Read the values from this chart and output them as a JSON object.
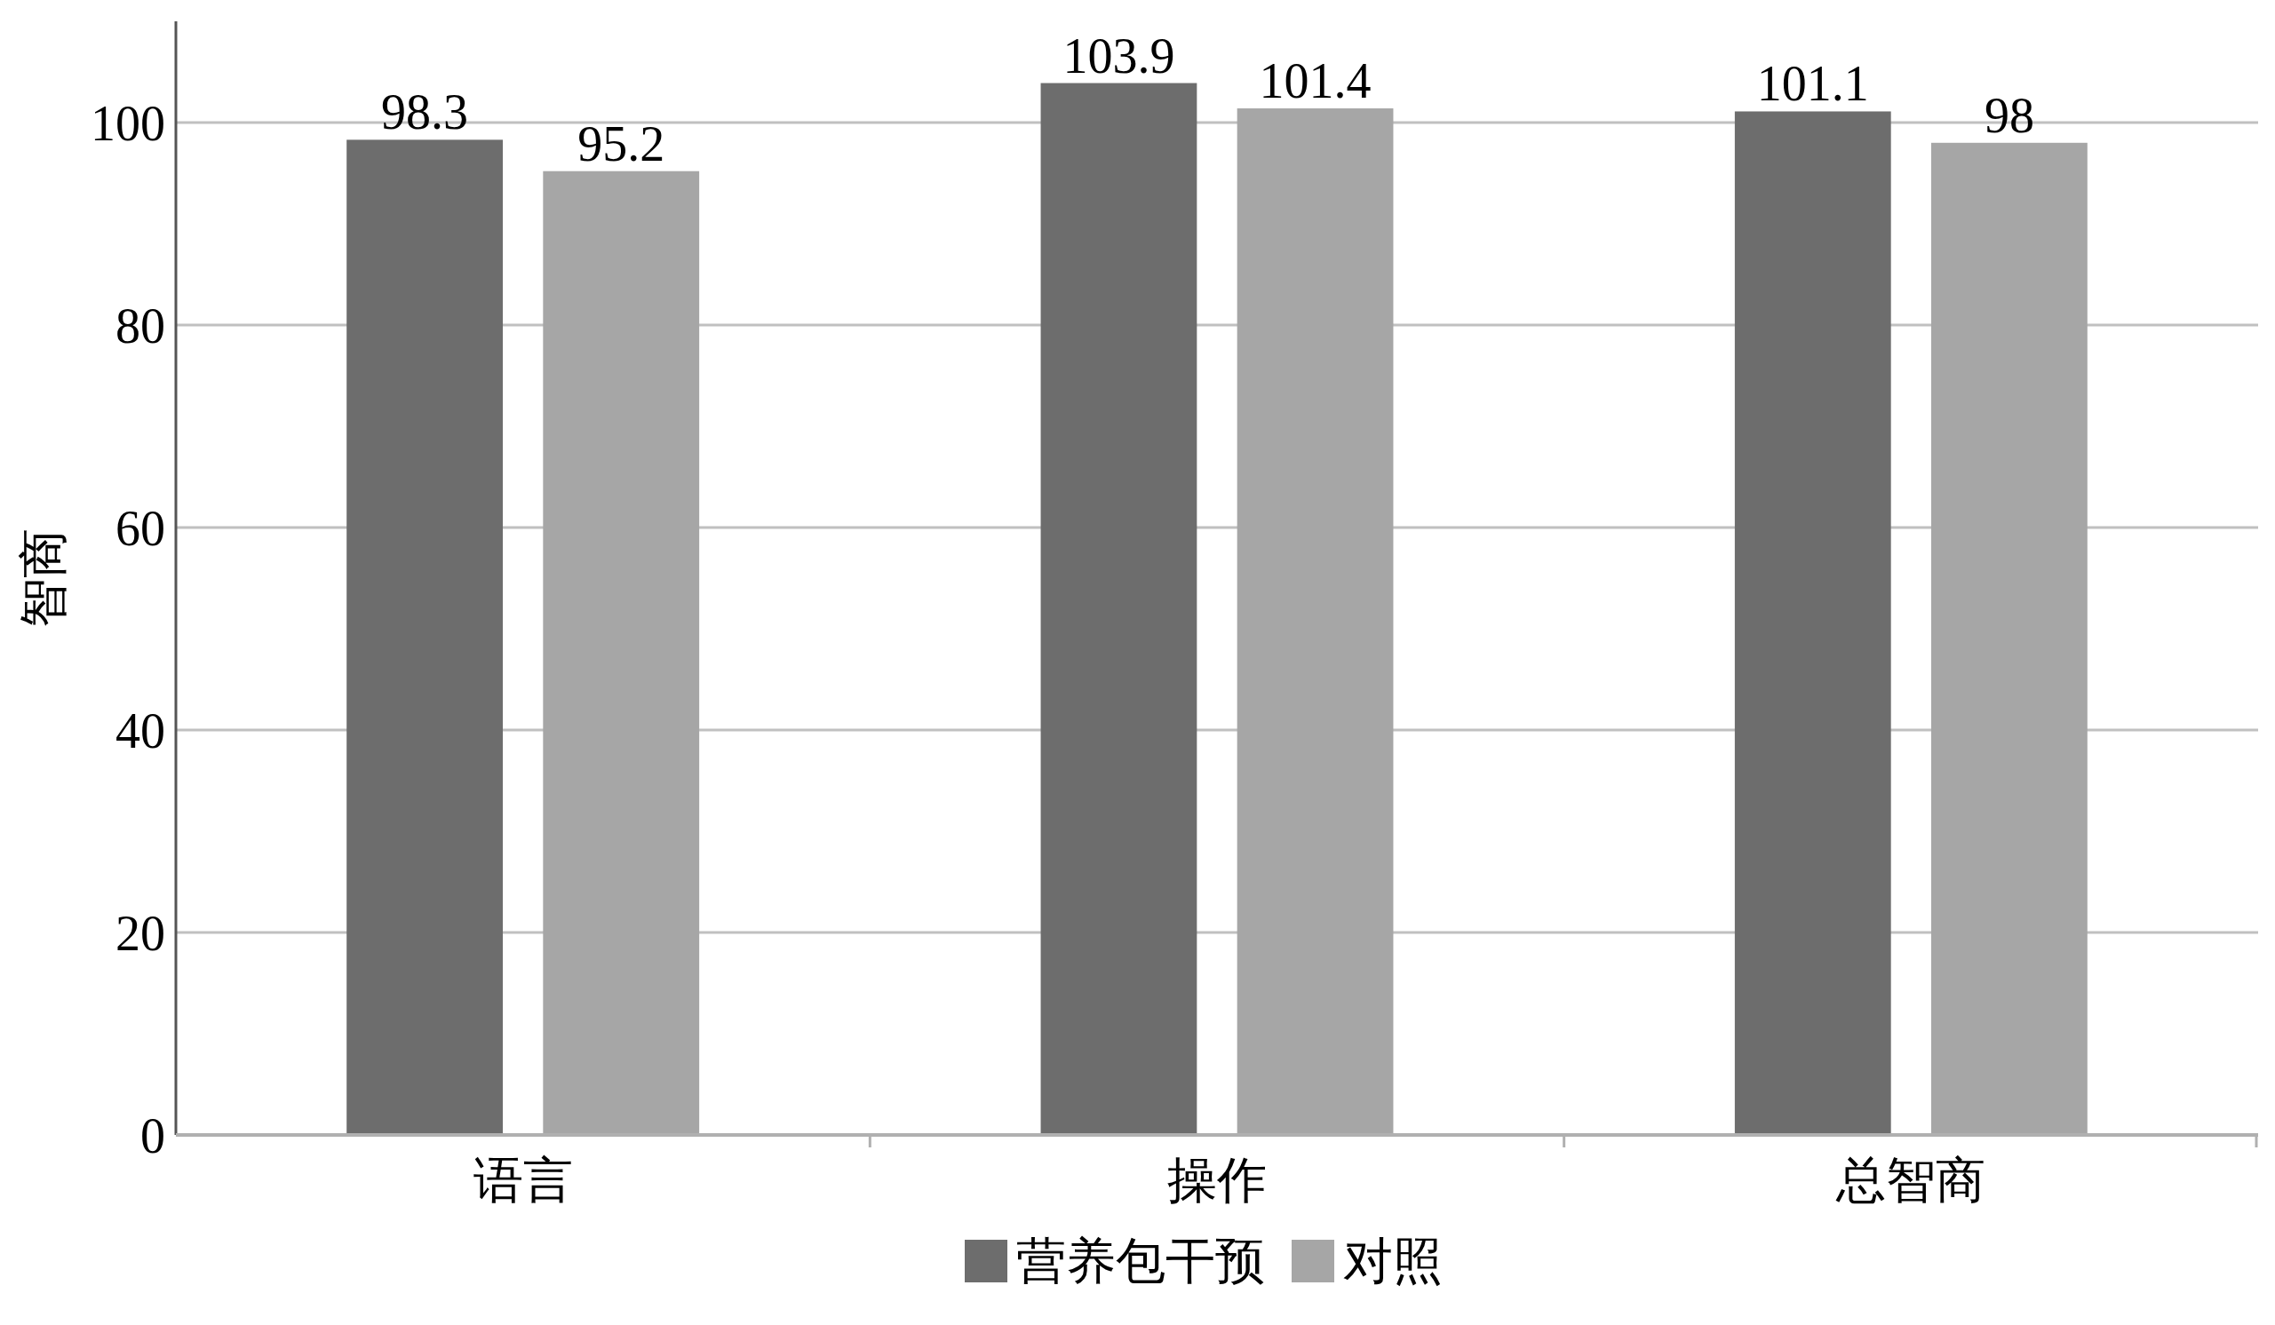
{
  "chart_data": {
    "type": "bar",
    "ylabel": "智商",
    "categories": [
      "语言",
      "操作",
      "总智商"
    ],
    "series": [
      {
        "name": "营养包干预",
        "color": "#6d6d6d",
        "values": [
          98.3,
          103.9,
          101.1
        ]
      },
      {
        "name": "对照",
        "color": "#a6a6a6",
        "values": [
          95.2,
          101.4,
          98
        ]
      }
    ],
    "ylim": [
      0,
      110
    ],
    "yticks": [
      0,
      20,
      40,
      60,
      80,
      100
    ],
    "grid": "y",
    "legend": "bottom",
    "data_labels": true
  }
}
